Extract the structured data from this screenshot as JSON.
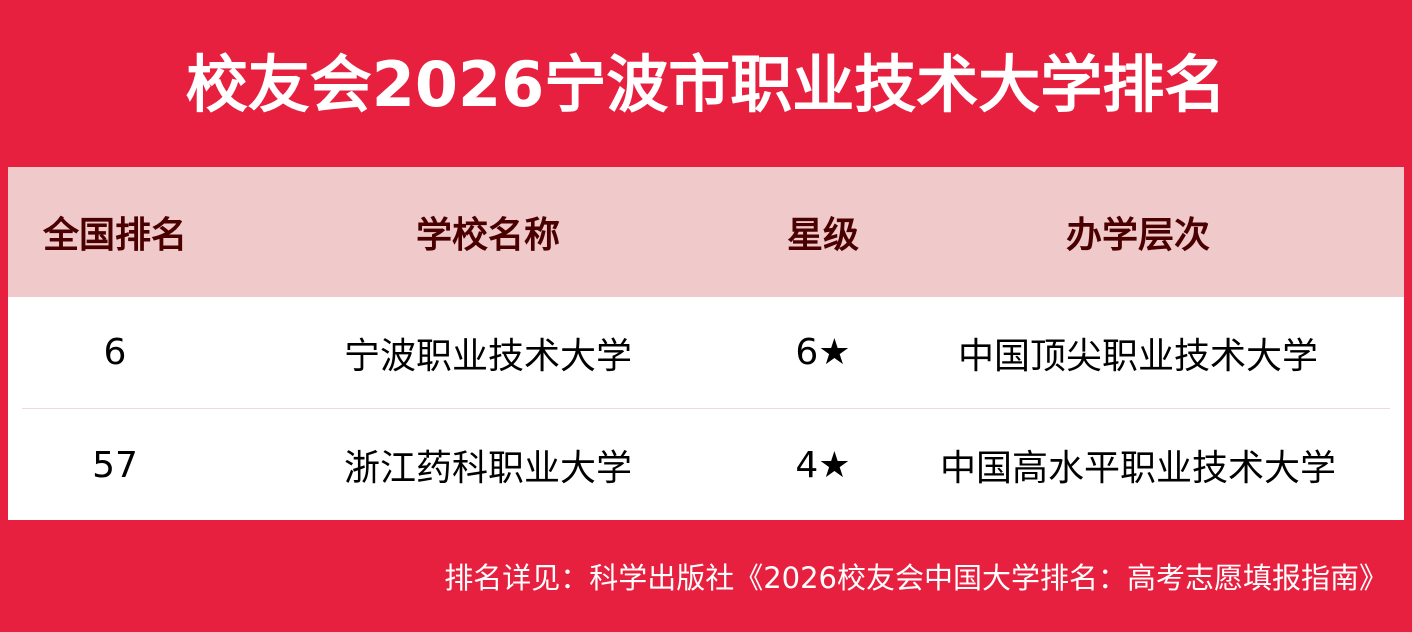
{
  "title": "校友会2026宁波市职业技术大学排名",
  "table": {
    "headers": [
      "全国排名",
      "学校名称",
      "星级",
      "办学层次"
    ],
    "rows": [
      [
        "6",
        "宁波职业技术大学",
        "6★",
        "中国顶尖职业技术大学"
      ],
      [
        "57",
        "浙江药科职业大学",
        "4★",
        "中国高水平职业技术大学"
      ]
    ]
  },
  "footer": "排名详见：科学出版社《2026校友会中国大学排名：高考志愿填报指南》",
  "colors": {
    "background": "#e8203f",
    "header_bg": "#f0c9ca",
    "header_text": "#4a0000"
  }
}
